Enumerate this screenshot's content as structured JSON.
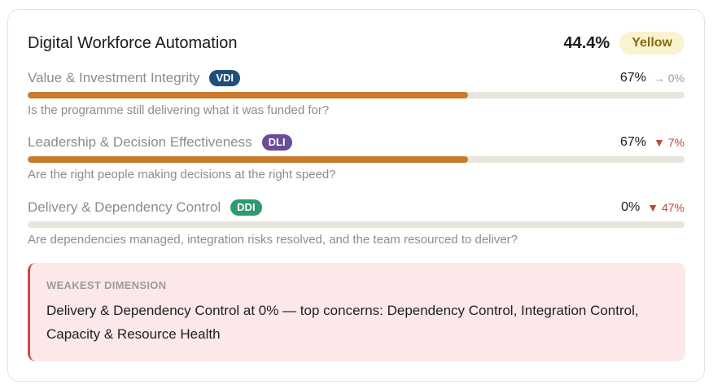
{
  "header": {
    "title": "Digital Workforce Automation",
    "score": "44.4%",
    "status": "Yellow"
  },
  "dimensions": [
    {
      "name": "Value & Investment Integrity",
      "code": "VDI",
      "badge_color": "#1f4e79",
      "percent": "67%",
      "delta": "→ 0%",
      "trend": "flat",
      "fill_fraction": 0.67,
      "question": "Is the programme still delivering what it was funded for?"
    },
    {
      "name": "Leadership & Decision Effectiveness",
      "code": "DLI",
      "badge_color": "#6b4c9a",
      "percent": "67%",
      "delta": "▼ 7%",
      "trend": "down",
      "fill_fraction": 0.67,
      "question": "Are the right people making decisions at the right speed?"
    },
    {
      "name": "Delivery & Dependency Control",
      "code": "DDI",
      "badge_color": "#2e9a6e",
      "percent": "0%",
      "delta": "▼ 47%",
      "trend": "down",
      "fill_fraction": 0.0,
      "question": "Are dependencies managed, integration risks resolved, and the team resourced to deliver?"
    }
  ],
  "weakest": {
    "label": "WEAKEST DIMENSION",
    "text": "Delivery & Dependency Control at 0% — top concerns: Dependency Control, Integration Control, Capacity & Resource Health"
  },
  "colors": {
    "bar_fill": "#c97a2a",
    "track": "#e9e5dc",
    "status_bg": "#fbf2cf",
    "alert_bg": "#fce8e8",
    "alert_border": "#c9494c"
  }
}
